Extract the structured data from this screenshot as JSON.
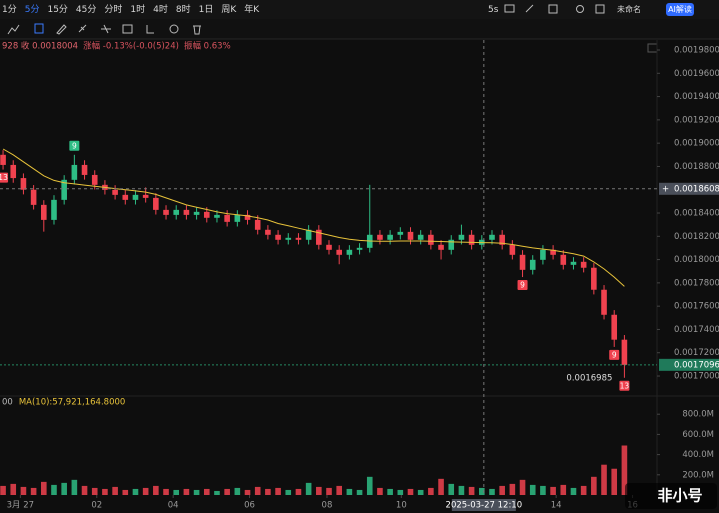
{
  "toolbar": {
    "timeframes": [
      "1分",
      "5分",
      "15分",
      "45分",
      "分时",
      "1时",
      "4时",
      "8时",
      "1日",
      "周K",
      "年K"
    ],
    "active": "5分",
    "interval": "5s",
    "layout_name": "未命名",
    "ai_button": "AI解读"
  },
  "chart_data": {
    "type": "candlestick",
    "info": [
      "928 收 0.0018004",
      "涨幅 -0.13%(-0.0(5)24)",
      "振幅 0.63%"
    ],
    "volume_legend": [
      "00",
      "MA(10):57,921,164.8000"
    ],
    "watermark": "非小号",
    "up_color": "#2ebd85",
    "down_color": "#f0424f",
    "ma_color": "#e8c33a",
    "ylim": [
      0.0016837,
      0.0019886
    ],
    "yticks": [
      {
        "value": 0.00198,
        "label": "0.0019800"
      },
      {
        "value": 0.00196,
        "label": "0.0019600"
      },
      {
        "value": 0.00194,
        "label": "0.0019400"
      },
      {
        "value": 0.00192,
        "label": "0.0019200"
      },
      {
        "value": 0.0019,
        "label": "0.0019000"
      },
      {
        "value": 0.00188,
        "label": "0.0018800"
      },
      {
        "value": 0.00184,
        "label": "0.0018400"
      },
      {
        "value": 0.00182,
        "label": "0.0018200"
      },
      {
        "value": 0.0018,
        "label": "0.0018000"
      },
      {
        "value": 0.00178,
        "label": "0.0017800"
      },
      {
        "value": 0.00176,
        "label": "0.0017600"
      },
      {
        "value": 0.00174,
        "label": "0.0017400"
      },
      {
        "value": 0.00172,
        "label": "0.0017200"
      },
      {
        "value": 0.0017,
        "label": "0.0017000"
      }
    ],
    "volume_ylim": [
      0,
      1000000000
    ],
    "volume_ticks": [
      {
        "value": 800000000,
        "label": "800.0M"
      },
      {
        "value": 600000000,
        "label": "600.0M"
      },
      {
        "value": 400000000,
        "label": "400.0M"
      },
      {
        "value": 200000000,
        "label": "200.0M"
      }
    ],
    "xlim": [
      -0.3,
      64.2
    ],
    "xticks": [
      {
        "value": 1.7,
        "label": "3月 27"
      },
      {
        "value": 9.2,
        "label": "02"
      },
      {
        "value": 16.7,
        "label": "04"
      },
      {
        "value": 24.2,
        "label": "06"
      },
      {
        "value": 31.8,
        "label": "08"
      },
      {
        "value": 39.1,
        "label": "10"
      },
      {
        "value": 54.3,
        "label": "14"
      },
      {
        "value": 61.8,
        "label": "16"
      }
    ],
    "open": [
      0.00189,
      0.0018813,
      0.00187,
      0.00186,
      0.001847,
      0.0018341,
      0.0018513,
      0.0018685,
      0.0018813,
      0.0018727,
      0.0018642,
      0.0018599,
      0.0018556,
      0.0018513,
      0.0018556,
      0.001853,
      0.0018427,
      0.0018384,
      0.0018427,
      0.0018384,
      0.001841,
      0.0018359,
      0.0018384,
      0.0018324,
      0.0018384,
      0.0018341,
      0.0018256,
      0.0018213,
      0.001817,
      0.0018187,
      0.001817,
      0.0018256,
      0.0018127,
      0.0018084,
      0.0018041,
      0.0018084,
      0.0018101,
      0.0018213,
      0.001817,
      0.0018213,
      0.0018238,
      0.001817,
      0.0018213,
      0.0018127,
      0.0018084,
      0.001817,
      0.0018213,
      0.0018127,
      0.001817,
      0.0018213,
      0.0018127,
      0.0018041,
      0.0017912,
      0.0017998,
      0.0018084,
      0.0018041,
      0.0017955,
      0.0017981,
      0.001793,
      0.0017741,
      0.0017526,
      0.0017312
    ],
    "high": [
      0.001894,
      0.0018853,
      0.001874,
      0.001864,
      0.001851,
      0.0018553,
      0.0018725,
      0.00189,
      0.0018853,
      0.0018767,
      0.0018682,
      0.0018639,
      0.0018596,
      0.0018596,
      0.001862,
      0.001857,
      0.0018467,
      0.0018467,
      0.0018467,
      0.001845,
      0.001845,
      0.0018424,
      0.0018424,
      0.0018424,
      0.0018424,
      0.0018381,
      0.0018296,
      0.0018253,
      0.0018227,
      0.0018227,
      0.0018296,
      0.0018296,
      0.0018167,
      0.0018124,
      0.0018124,
      0.0018141,
      0.0018642,
      0.0018253,
      0.0018253,
      0.0018278,
      0.0018278,
      0.0018253,
      0.0018253,
      0.0018167,
      0.001821,
      0.00183,
      0.0018253,
      0.001821,
      0.0018253,
      0.0018253,
      0.0018167,
      0.0018081,
      0.0018038,
      0.0018124,
      0.0018124,
      0.0018081,
      0.0018021,
      0.0018021,
      0.001797,
      0.0017781,
      0.0017566,
      0.0017352
    ],
    "low": [
      0.0018773,
      0.001866,
      0.001856,
      0.001843,
      0.001824,
      0.0018301,
      0.0018473,
      0.0018645,
      0.0018687,
      0.0018602,
      0.0018559,
      0.0018516,
      0.0018473,
      0.0018473,
      0.001849,
      0.0018387,
      0.0018344,
      0.0018344,
      0.0018344,
      0.0018344,
      0.0018319,
      0.0018319,
      0.0018284,
      0.0018284,
      0.0018301,
      0.0018216,
      0.0018173,
      0.001813,
      0.001813,
      0.001813,
      0.001813,
      0.0018087,
      0.0018044,
      0.001796,
      0.0018001,
      0.0018044,
      0.0018061,
      0.001813,
      0.001813,
      0.0018173,
      0.001813,
      0.001813,
      0.0018087,
      0.0018001,
      0.0018044,
      0.001813,
      0.0018087,
      0.0018087,
      0.001813,
      0.0018087,
      0.0018001,
      0.001785,
      0.0017872,
      0.0017958,
      0.0018001,
      0.0017915,
      0.0017915,
      0.001789,
      0.0017701,
      0.0017486,
      0.001725,
      0.0016985
    ],
    "close": [
      0.0018813,
      0.00187,
      0.00186,
      0.001847,
      0.0018341,
      0.0018513,
      0.0018685,
      0.0018813,
      0.0018727,
      0.0018642,
      0.0018599,
      0.0018556,
      0.0018513,
      0.0018556,
      0.001853,
      0.0018427,
      0.0018384,
      0.0018427,
      0.0018384,
      0.001841,
      0.0018359,
      0.0018384,
      0.0018324,
      0.0018384,
      0.0018341,
      0.0018256,
      0.0018213,
      0.001817,
      0.0018187,
      0.001817,
      0.0018256,
      0.0018127,
      0.0018084,
      0.0018041,
      0.0018084,
      0.0018101,
      0.0018213,
      0.001817,
      0.0018213,
      0.0018238,
      0.001817,
      0.0018213,
      0.0018127,
      0.0018084,
      0.001817,
      0.0018213,
      0.0018127,
      0.001817,
      0.0018213,
      0.0018127,
      0.0018041,
      0.0017912,
      0.0017998,
      0.0018084,
      0.0018041,
      0.0017955,
      0.0017981,
      0.001793,
      0.0017741,
      0.0017526,
      0.0017312,
      0.0017096
    ],
    "volume": [
      90000000,
      110000000,
      80000000,
      70000000,
      130000000,
      100000000,
      120000000,
      150000000,
      90000000,
      70000000,
      60000000,
      80000000,
      50000000,
      60000000,
      70000000,
      90000000,
      60000000,
      50000000,
      60000000,
      50000000,
      60000000,
      40000000,
      60000000,
      70000000,
      50000000,
      80000000,
      60000000,
      70000000,
      50000000,
      60000000,
      120000000,
      80000000,
      70000000,
      90000000,
      60000000,
      50000000,
      180000000,
      70000000,
      60000000,
      50000000,
      60000000,
      50000000,
      70000000,
      160000000,
      110000000,
      90000000,
      80000000,
      70000000,
      60000000,
      90000000,
      110000000,
      150000000,
      100000000,
      90000000,
      80000000,
      100000000,
      70000000,
      90000000,
      180000000,
      300000000,
      260000000,
      490000000
    ],
    "ma": {
      "values": [
        0.001895,
        0.00189,
        0.001884,
        0.001878,
        0.001872,
        0.001868,
        0.001866,
        0.001865,
        0.001864,
        0.001863,
        0.001862,
        0.001861,
        0.00186,
        0.001859,
        0.001858,
        0.001856,
        0.001853,
        0.00185,
        0.001847,
        0.001845,
        0.001843,
        0.001841,
        0.0018395,
        0.0018385,
        0.0018375,
        0.001836,
        0.001834,
        0.001831,
        0.001829,
        0.001827,
        0.001825,
        0.001823,
        0.001821,
        0.001819,
        0.0018175,
        0.0018165,
        0.001816,
        0.0018158,
        0.0018158,
        0.001816,
        0.001816,
        0.001816,
        0.0018158,
        0.0018155,
        0.0018152,
        0.001815,
        0.0018148,
        0.0018146,
        0.0018144,
        0.001814,
        0.001813,
        0.0018115,
        0.00181,
        0.001809,
        0.001808,
        0.0018065,
        0.001805,
        0.001803,
        0.001798,
        0.001792,
        0.001785,
        0.001777
      ]
    },
    "markers": [
      {
        "index": 0,
        "label": "13",
        "side": "below",
        "color": "#f0424f"
      },
      {
        "index": 7,
        "label": "9",
        "side": "above",
        "color": "#2ebd85"
      },
      {
        "index": 51,
        "label": "9",
        "side": "below",
        "color": "#f0424f"
      },
      {
        "index": 60,
        "label": "9",
        "side": "below",
        "color": "#f0424f"
      },
      {
        "index": 61,
        "label": "13",
        "side": "below",
        "color": "#f0424f"
      }
    ],
    "low_label": {
      "value": 0.0016985,
      "label": "0.0016985"
    },
    "last_price": {
      "value": 0.0017096,
      "label": "0.0017096"
    },
    "crosshair": {
      "price": {
        "value": 0.0018608,
        "label": "0.0018608"
      },
      "index": 47.2,
      "time_label": "2025-03-27 12:10"
    }
  }
}
